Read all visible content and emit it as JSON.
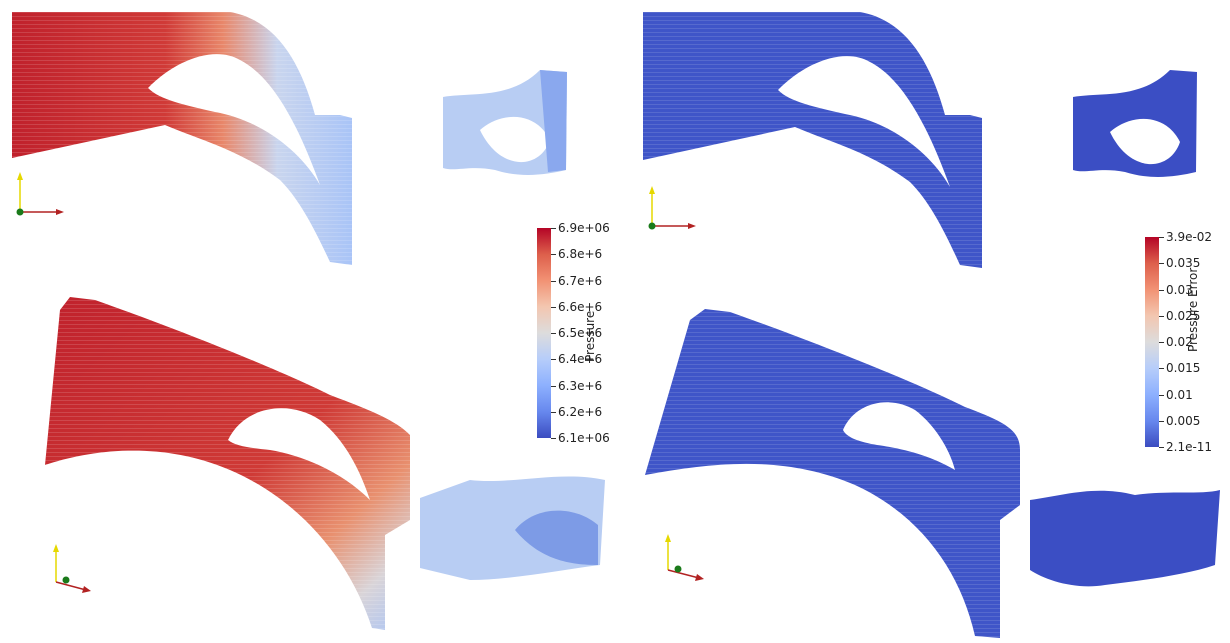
{
  "panels": [
    {
      "scalar": "Pressure",
      "colorbar": {
        "title": "Pressure",
        "labels": [
          "6.9e+06",
          "6.8e+6",
          "6.7e+6",
          "6.6e+6",
          "6.5e+6",
          "6.4e+6",
          "6.3e+6",
          "6.2e+6",
          "6.1e+06"
        ],
        "colors": [
          "#b40426",
          "#dd5f4b",
          "#f29274",
          "#f3c6b0",
          "#dddcdc",
          "#b6cdfa",
          "#8db0fe",
          "#6788ee",
          "#3b4cc0"
        ]
      }
    },
    {
      "scalar": "Pressure Error",
      "colorbar": {
        "title": "Pressure Error",
        "labels": [
          "3.9e-02",
          "0.035",
          "0.03",
          "0.025",
          "0.02",
          "0.015",
          "0.01",
          "0.005",
          "2.1e-11"
        ],
        "colors": [
          "#b40426",
          "#dd5f4b",
          "#f29274",
          "#f3c6b0",
          "#dddcdc",
          "#b6cdfa",
          "#8db0fe",
          "#6788ee",
          "#3b4cc0"
        ]
      }
    }
  ],
  "axes_colors": {
    "x": "#b22222",
    "y": "#e6d800",
    "z": "#1a7a1a"
  }
}
